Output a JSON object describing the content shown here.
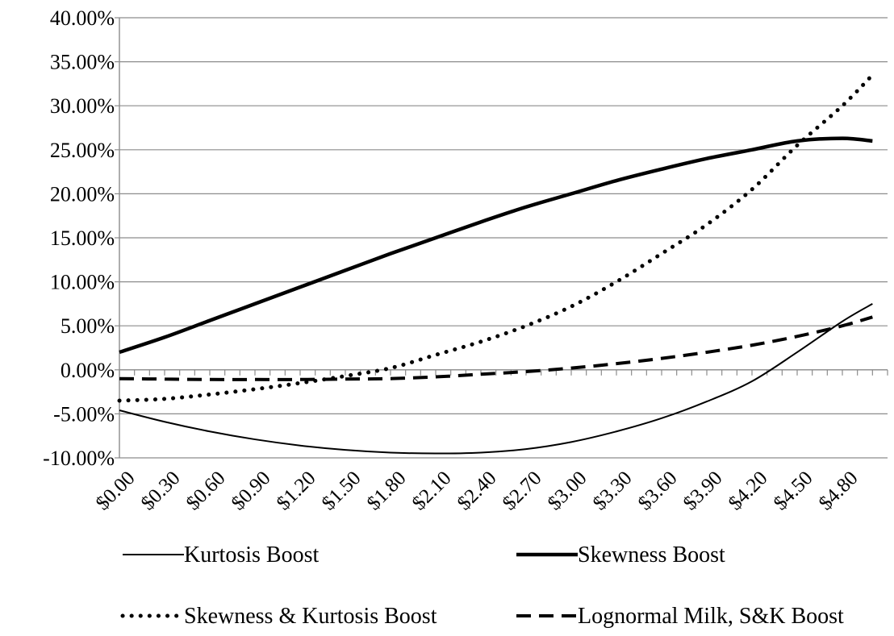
{
  "chart_data": {
    "type": "line",
    "x_tick_labels": [
      "$0.00",
      "$0.30",
      "$0.60",
      "$0.90",
      "$1.20",
      "$1.50",
      "$1.80",
      "$2.10",
      "$2.40",
      "$2.70",
      "$3.00",
      "$3.30",
      "$3.60",
      "$3.90",
      "$4.20",
      "$4.50",
      "$4.80"
    ],
    "x_tick_values": [
      0,
      0.3,
      0.6,
      0.9,
      1.2,
      1.5,
      1.8,
      2.1,
      2.4,
      2.7,
      3.0,
      3.3,
      3.6,
      3.9,
      4.2,
      4.5,
      4.8
    ],
    "x_minor_step": 0.1,
    "xlim": [
      0,
      5.1
    ],
    "ylim": [
      -10,
      40
    ],
    "y_ticks": [
      -10,
      -5,
      0,
      5,
      10,
      15,
      20,
      25,
      30,
      35,
      40
    ],
    "y_tick_labels": [
      "-10.00%",
      "-5.00%",
      "0.00%",
      "5.00%",
      "10.00%",
      "15.00%",
      "20.00%",
      "25.00%",
      "30.00%",
      "35.00%",
      "40.00%"
    ],
    "grid": "horizontal",
    "legend_position": "bottom",
    "series": [
      {
        "name": "Kurtosis Boost",
        "style": "thin-solid",
        "x": [
          0,
          0.3,
          0.6,
          0.9,
          1.2,
          1.5,
          1.8,
          2.1,
          2.4,
          2.7,
          3.0,
          3.3,
          3.6,
          3.9,
          4.2,
          4.5,
          4.8,
          5.0
        ],
        "y": [
          -4.6,
          -5.9,
          -7.0,
          -7.9,
          -8.6,
          -9.1,
          -9.4,
          -9.5,
          -9.4,
          -9.0,
          -8.2,
          -7.0,
          -5.5,
          -3.6,
          -1.3,
          2.0,
          5.5,
          7.5
        ]
      },
      {
        "name": "Skewness Boost",
        "style": "thick-solid",
        "x": [
          0,
          0.3,
          0.6,
          0.9,
          1.2,
          1.5,
          1.8,
          2.1,
          2.4,
          2.7,
          3.0,
          3.3,
          3.6,
          3.9,
          4.2,
          4.5,
          4.8,
          5.0
        ],
        "y": [
          2.0,
          3.7,
          5.6,
          7.5,
          9.4,
          11.3,
          13.2,
          15.0,
          16.8,
          18.5,
          20.0,
          21.5,
          22.8,
          24.0,
          25.0,
          26.0,
          26.3,
          26.0
        ]
      },
      {
        "name": "Skewness & Kurtosis Boost",
        "style": "dotted",
        "x": [
          0,
          0.3,
          0.6,
          0.9,
          1.2,
          1.5,
          1.8,
          2.1,
          2.4,
          2.7,
          3.0,
          3.3,
          3.6,
          3.9,
          4.2,
          4.5,
          4.8,
          5.0
        ],
        "y": [
          -3.5,
          -3.3,
          -2.8,
          -2.2,
          -1.5,
          -0.7,
          0.2,
          1.7,
          3.2,
          5.0,
          7.2,
          10.0,
          13.2,
          16.5,
          20.5,
          25.5,
          30.0,
          33.5
        ]
      },
      {
        "name": "Lognormal Milk, S&K Boost",
        "style": "dashed",
        "x": [
          0,
          0.3,
          0.6,
          0.9,
          1.2,
          1.5,
          1.8,
          2.1,
          2.4,
          2.7,
          3.0,
          3.3,
          3.6,
          3.9,
          4.2,
          4.5,
          4.8,
          5.0
        ],
        "y": [
          -1.0,
          -1.05,
          -1.1,
          -1.1,
          -1.1,
          -1.05,
          -1.0,
          -0.8,
          -0.5,
          -0.2,
          0.2,
          0.7,
          1.3,
          2.0,
          2.8,
          3.8,
          5.0,
          6.0
        ]
      }
    ]
  }
}
